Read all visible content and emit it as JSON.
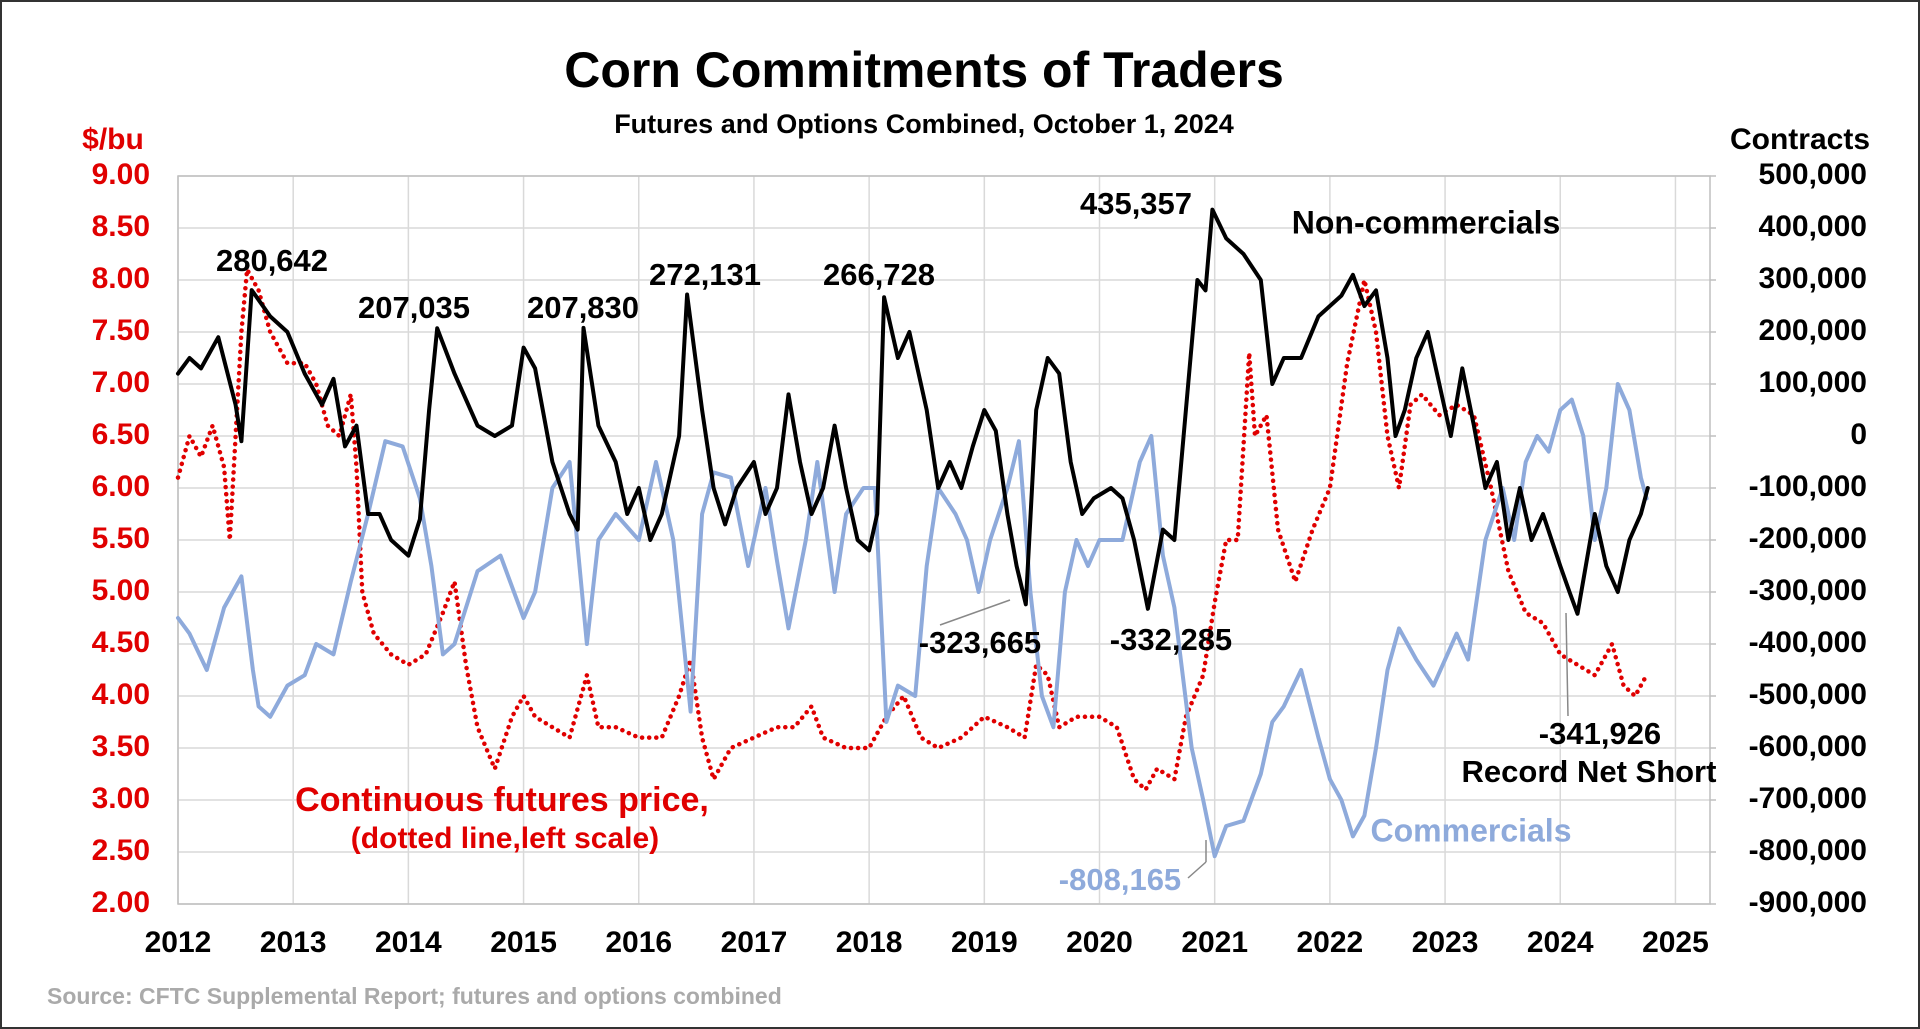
{
  "chart_data": {
    "type": "line",
    "title": "Corn Commitments of Traders",
    "subtitle": "Futures and Options Combined, October 1, 2024",
    "y_label": "$/bu",
    "y2_label": "Contracts",
    "source": "Source: CFTC Supplemental Report; futures and options combined",
    "grid": true,
    "xlim": [
      2012,
      2025.3
    ],
    "xticks": [
      2012,
      2013,
      2014,
      2015,
      2016,
      2017,
      2018,
      2019,
      2020,
      2021,
      2022,
      2023,
      2024,
      2025
    ],
    "ylim": [
      2,
      9
    ],
    "yticks": [
      {
        "value": 9,
        "label": "9.00"
      },
      {
        "value": 8.5,
        "label": "8.50"
      },
      {
        "value": 8,
        "label": "8.00"
      },
      {
        "value": 7.5,
        "label": "7.50"
      },
      {
        "value": 7,
        "label": "7.00"
      },
      {
        "value": 6.5,
        "label": "6.50"
      },
      {
        "value": 6,
        "label": "6.00"
      },
      {
        "value": 5.5,
        "label": "5.50"
      },
      {
        "value": 5,
        "label": "5.00"
      },
      {
        "value": 4.5,
        "label": "4.50"
      },
      {
        "value": 4,
        "label": "4.00"
      },
      {
        "value": 3.5,
        "label": "3.50"
      },
      {
        "value": 3,
        "label": "3.00"
      },
      {
        "value": 2.5,
        "label": "2.50"
      },
      {
        "value": 2,
        "label": "2.00"
      }
    ],
    "y2lim": [
      -900000,
      500000
    ],
    "y2ticks": [
      {
        "value": 500000,
        "label": "500,000"
      },
      {
        "value": 400000,
        "label": "400,000"
      },
      {
        "value": 300000,
        "label": "300,000"
      },
      {
        "value": 200000,
        "label": "200,000"
      },
      {
        "value": 100000,
        "label": "100,000"
      },
      0,
      {
        "value": -100000,
        "label": "-100,000"
      },
      {
        "value": -200000,
        "label": "-200,000"
      },
      {
        "value": -300000,
        "label": "-300,000"
      },
      {
        "value": -400000,
        "label": "-400,000"
      },
      {
        "value": -500000,
        "label": "-500,000"
      },
      {
        "value": -600000,
        "label": "-600,000"
      },
      {
        "value": -700000,
        "label": "-700,000"
      },
      {
        "value": -800000,
        "label": "-800,000"
      },
      {
        "value": -900000,
        "label": "-900,000"
      }
    ],
    "series": [
      {
        "name": "Continuous futures price,",
        "note": "(dotted line,left scale)",
        "color": "#e00000",
        "axis": "y",
        "style": "dotted",
        "x": [
          2012.0,
          2012.1,
          2012.2,
          2012.3,
          2012.4,
          2012.45,
          2012.5,
          2012.55,
          2012.6,
          2012.7,
          2012.8,
          2012.95,
          2013.1,
          2013.2,
          2013.3,
          2013.4,
          2013.5,
          2013.55,
          2013.6,
          2013.7,
          2013.85,
          2014.0,
          2014.15,
          2014.3,
          2014.4,
          2014.5,
          2014.6,
          2014.75,
          2014.9,
          2015.0,
          2015.1,
          2015.25,
          2015.4,
          2015.55,
          2015.65,
          2015.8,
          2016.0,
          2016.2,
          2016.35,
          2016.45,
          2016.55,
          2016.65,
          2016.8,
          2017.0,
          2017.2,
          2017.35,
          2017.5,
          2017.6,
          2017.8,
          2018.0,
          2018.15,
          2018.3,
          2018.45,
          2018.6,
          2018.8,
          2019.0,
          2019.2,
          2019.35,
          2019.45,
          2019.55,
          2019.65,
          2019.8,
          2020.0,
          2020.15,
          2020.3,
          2020.4,
          2020.5,
          2020.65,
          2020.75,
          2020.9,
          2021.0,
          2021.1,
          2021.2,
          2021.3,
          2021.35,
          2021.45,
          2021.55,
          2021.7,
          2021.85,
          2022.0,
          2022.15,
          2022.3,
          2022.4,
          2022.5,
          2022.6,
          2022.7,
          2022.8,
          2022.95,
          2023.1,
          2023.25,
          2023.4,
          2023.55,
          2023.7,
          2023.85,
          2024.0,
          2024.15,
          2024.3,
          2024.45,
          2024.55,
          2024.65,
          2024.75
        ],
        "values": [
          6.1,
          6.5,
          6.3,
          6.6,
          6.2,
          5.5,
          6.5,
          7.5,
          8.1,
          7.9,
          7.5,
          7.2,
          7.2,
          7.0,
          6.6,
          6.5,
          6.9,
          6.2,
          5.0,
          4.6,
          4.4,
          4.3,
          4.4,
          4.8,
          5.1,
          4.3,
          3.7,
          3.3,
          3.8,
          4.0,
          3.8,
          3.7,
          3.6,
          4.2,
          3.7,
          3.7,
          3.6,
          3.6,
          4.0,
          4.35,
          3.6,
          3.2,
          3.5,
          3.6,
          3.7,
          3.7,
          3.9,
          3.6,
          3.5,
          3.5,
          3.8,
          4.0,
          3.6,
          3.5,
          3.6,
          3.8,
          3.7,
          3.6,
          4.3,
          4.2,
          3.7,
          3.8,
          3.8,
          3.7,
          3.2,
          3.1,
          3.3,
          3.2,
          3.8,
          4.2,
          4.9,
          5.5,
          5.5,
          7.3,
          6.5,
          6.7,
          5.6,
          5.1,
          5.6,
          6.0,
          7.2,
          8.0,
          7.5,
          6.5,
          6.0,
          6.8,
          6.9,
          6.7,
          6.8,
          6.7,
          6.0,
          5.2,
          4.8,
          4.7,
          4.4,
          4.3,
          4.2,
          4.5,
          4.1,
          4.0,
          4.2
        ]
      },
      {
        "name": "Commercials",
        "color": "#8eaadb",
        "axis": "y2",
        "style": "solid",
        "x": [
          2012.0,
          2012.1,
          2012.25,
          2012.4,
          2012.55,
          2012.65,
          2012.7,
          2012.8,
          2012.95,
          2013.1,
          2013.2,
          2013.35,
          2013.5,
          2013.65,
          2013.8,
          2013.95,
          2014.1,
          2014.2,
          2014.3,
          2014.4,
          2014.6,
          2014.8,
          2015.0,
          2015.1,
          2015.25,
          2015.4,
          2015.55,
          2015.65,
          2015.8,
          2016.0,
          2016.15,
          2016.3,
          2016.45,
          2016.55,
          2016.65,
          2016.8,
          2016.95,
          2017.1,
          2017.2,
          2017.3,
          2017.45,
          2017.55,
          2017.7,
          2017.8,
          2017.95,
          2018.05,
          2018.15,
          2018.25,
          2018.4,
          2018.5,
          2018.6,
          2018.75,
          2018.85,
          2018.95,
          2019.05,
          2019.2,
          2019.3,
          2019.4,
          2019.5,
          2019.6,
          2019.7,
          2019.8,
          2019.9,
          2020.0,
          2020.2,
          2020.35,
          2020.45,
          2020.55,
          2020.65,
          2020.8,
          2020.9,
          2021.0,
          2021.1,
          2021.25,
          2021.4,
          2021.5,
          2021.6,
          2021.75,
          2021.9,
          2022.0,
          2022.1,
          2022.2,
          2022.3,
          2022.4,
          2022.5,
          2022.6,
          2022.75,
          2022.9,
          2023.0,
          2023.1,
          2023.2,
          2023.35,
          2023.5,
          2023.6,
          2023.7,
          2023.8,
          2023.9,
          2024.0,
          2024.1,
          2024.2,
          2024.3,
          2024.4,
          2024.5,
          2024.6,
          2024.7,
          2024.75
        ],
        "values": [
          -350000,
          -380000,
          -450000,
          -330000,
          -270000,
          -450000,
          -520000,
          -540000,
          -480000,
          -460000,
          -400000,
          -420000,
          -280000,
          -150000,
          -10000,
          -20000,
          -120000,
          -250000,
          -420000,
          -400000,
          -260000,
          -230000,
          -350000,
          -300000,
          -100000,
          -50000,
          -400000,
          -200000,
          -150000,
          -200000,
          -50000,
          -200000,
          -530000,
          -150000,
          -70000,
          -80000,
          -250000,
          -100000,
          -240000,
          -370000,
          -200000,
          -50000,
          -300000,
          -150000,
          -100000,
          -100000,
          -550000,
          -480000,
          -500000,
          -250000,
          -100000,
          -150000,
          -200000,
          -300000,
          -200000,
          -100000,
          -10000,
          -300000,
          -500000,
          -560000,
          -300000,
          -200000,
          -250000,
          -200000,
          -200000,
          -50000,
          0,
          -230000,
          -330000,
          -600000,
          -700000,
          -808165,
          -750000,
          -740000,
          -650000,
          -550000,
          -520000,
          -450000,
          -580000,
          -660000,
          -700000,
          -770000,
          -730000,
          -600000,
          -450000,
          -370000,
          -430000,
          -480000,
          -430000,
          -380000,
          -430000,
          -200000,
          -100000,
          -200000,
          -50000,
          0,
          -30000,
          50000,
          70000,
          0,
          -200000,
          -100000,
          100000,
          50000,
          -80000,
          -120000
        ]
      },
      {
        "name": "Non-commercials",
        "color": "#000000",
        "axis": "y2",
        "style": "solid",
        "x": [
          2012.0,
          2012.1,
          2012.2,
          2012.35,
          2012.5,
          2012.55,
          2012.64,
          2012.8,
          2012.95,
          2013.1,
          2013.25,
          2013.35,
          2013.45,
          2013.55,
          2013.65,
          2013.75,
          2013.85,
          2014.0,
          2014.1,
          2014.18,
          2014.25,
          2014.4,
          2014.6,
          2014.75,
          2014.9,
          2015.0,
          2015.1,
          2015.25,
          2015.4,
          2015.47,
          2015.52,
          2015.65,
          2015.8,
          2015.9,
          2016.0,
          2016.1,
          2016.2,
          2016.35,
          2016.42,
          2016.55,
          2016.65,
          2016.75,
          2016.85,
          2017.0,
          2017.1,
          2017.2,
          2017.3,
          2017.4,
          2017.5,
          2017.6,
          2017.7,
          2017.8,
          2017.9,
          2018.0,
          2018.07,
          2018.13,
          2018.25,
          2018.35,
          2018.5,
          2018.6,
          2018.7,
          2018.8,
          2018.9,
          2019.0,
          2019.1,
          2019.2,
          2019.28,
          2019.36,
          2019.45,
          2019.55,
          2019.65,
          2019.75,
          2019.85,
          2019.95,
          2020.1,
          2020.2,
          2020.3,
          2020.42,
          2020.55,
          2020.65,
          2020.75,
          2020.85,
          2020.92,
          2020.98,
          2021.1,
          2021.25,
          2021.4,
          2021.5,
          2021.6,
          2021.75,
          2021.9,
          2022.0,
          2022.1,
          2022.2,
          2022.3,
          2022.4,
          2022.5,
          2022.57,
          2022.65,
          2022.75,
          2022.85,
          2022.95,
          2023.05,
          2023.15,
          2023.25,
          2023.35,
          2023.45,
          2023.55,
          2023.65,
          2023.75,
          2023.85,
          2024.0,
          2024.08,
          2024.15,
          2024.3,
          2024.4,
          2024.5,
          2024.6,
          2024.7,
          2024.76
        ],
        "values": [
          120000,
          150000,
          130000,
          190000,
          60000,
          -10000,
          280642,
          230000,
          200000,
          120000,
          60000,
          110000,
          -20000,
          20000,
          -150000,
          -150000,
          -200000,
          -230000,
          -160000,
          50000,
          207035,
          120000,
          20000,
          0,
          20000,
          170000,
          130000,
          -50000,
          -150000,
          -180000,
          207830,
          20000,
          -50000,
          -150000,
          -100000,
          -200000,
          -150000,
          0,
          272131,
          50000,
          -100000,
          -170000,
          -100000,
          -50000,
          -150000,
          -100000,
          80000,
          -50000,
          -150000,
          -100000,
          20000,
          -100000,
          -200000,
          -220000,
          -150000,
          266728,
          150000,
          200000,
          50000,
          -100000,
          -50000,
          -100000,
          -20000,
          50000,
          10000,
          -150000,
          -250000,
          -323665,
          50000,
          150000,
          120000,
          -50000,
          -150000,
          -120000,
          -100000,
          -120000,
          -200000,
          -332285,
          -180000,
          -200000,
          50000,
          300000,
          280000,
          435357,
          380000,
          350000,
          300000,
          100000,
          150000,
          150000,
          230000,
          250000,
          270000,
          310000,
          250000,
          280000,
          150000,
          0,
          50000,
          150000,
          200000,
          100000,
          0,
          130000,
          20000,
          -100000,
          -50000,
          -200000,
          -100000,
          -200000,
          -150000,
          -250000,
          -300000,
          -341926,
          -150000,
          -250000,
          -300000,
          -200000,
          -150000,
          -100000
        ]
      }
    ],
    "annotations": [
      "280,642",
      "207,035",
      "207,830",
      "272,131",
      "266,728",
      "435,357",
      "-323,665",
      "-332,285",
      "-341,926",
      "Record Net Short",
      "-808,165"
    ]
  }
}
